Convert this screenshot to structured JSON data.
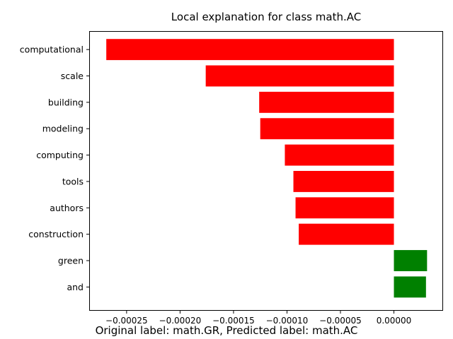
{
  "chart_data": {
    "type": "bar",
    "orientation": "horizontal",
    "title": "Local explanation for class math.AC",
    "xlabel": "",
    "ylabel": "",
    "categories": [
      "computational",
      "scale",
      "building",
      "modeling",
      "computing",
      "tools",
      "authors",
      "construction",
      "green",
      "and"
    ],
    "values": [
      -0.000269,
      -0.000176,
      -0.000126,
      -0.000125,
      -0.000102,
      -9.4e-05,
      -9.2e-05,
      -8.9e-05,
      3.1e-05,
      3e-05
    ],
    "xlim": [
      -0.000285,
      4.6e-05
    ],
    "xticks": [
      -0.00025,
      -0.0002,
      -0.00015,
      -0.0001,
      -5e-05,
      0.0
    ],
    "xtick_labels": [
      "−0.00025",
      "−0.00020",
      "−0.00015",
      "−0.00010",
      "−0.00005",
      "0.00000"
    ],
    "grid": false,
    "colors": {
      "negative": "#ff0000",
      "positive": "#008000"
    }
  },
  "caption": "Original label: math.GR, Predicted label: math.AC"
}
